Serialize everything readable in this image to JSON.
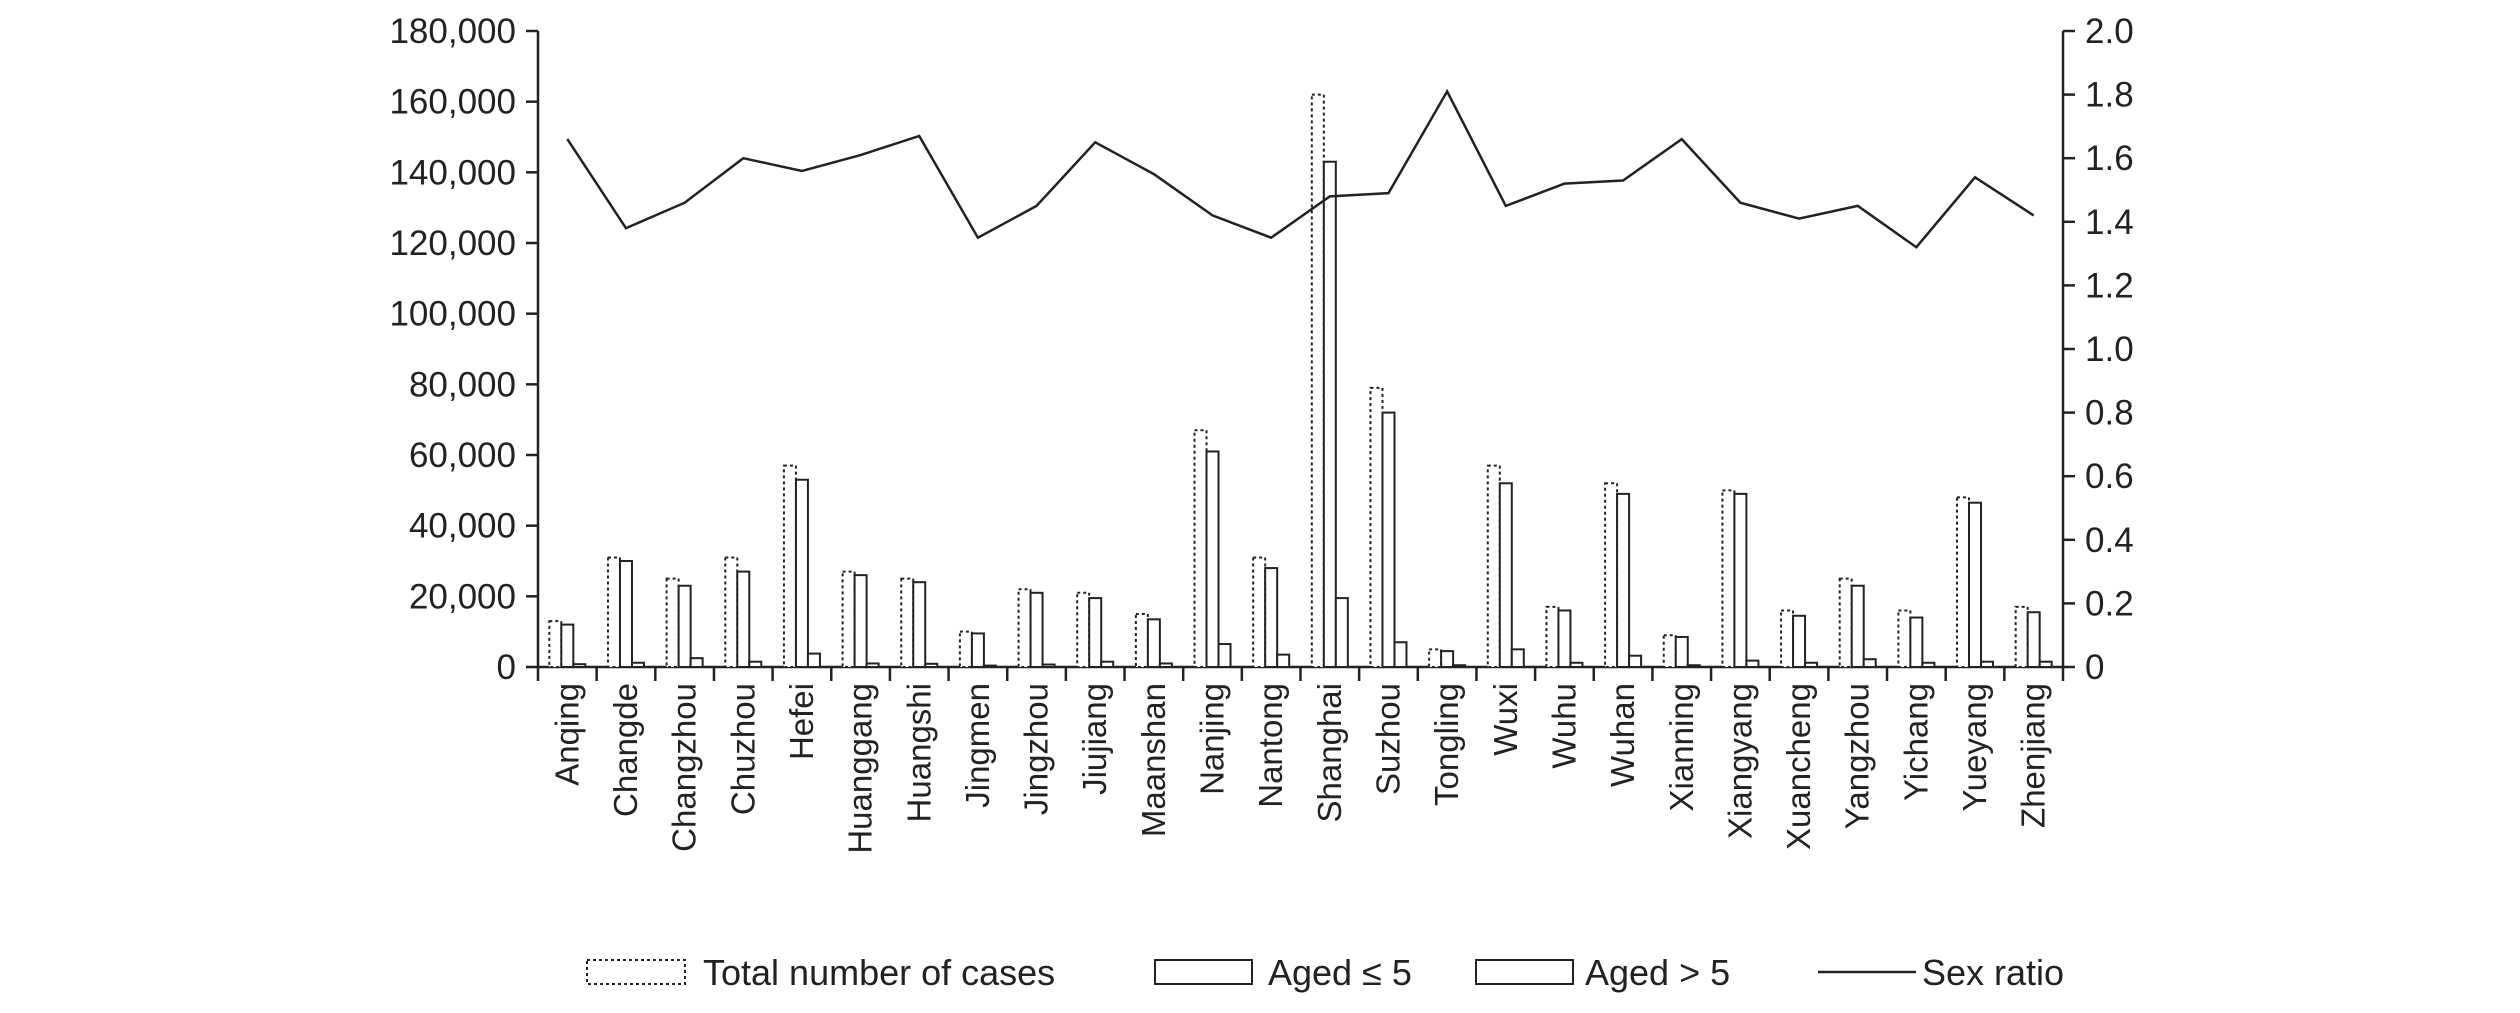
{
  "chart_data": {
    "type": "bar",
    "categories": [
      "Anqing",
      "Changde",
      "Changzhou",
      "Chuzhou",
      "Hefei",
      "Huanggang",
      "Huangshi",
      "Jingmen",
      "Jingzhou",
      "Jiujiang",
      "Maanshan",
      "Nanjing",
      "Nantong",
      "Shanghai",
      "Suzhou",
      "Tongling",
      "Wuxi",
      "Wuhu",
      "Wuhan",
      "Xianning",
      "Xiangyang",
      "Xuancheng",
      "Yangzhou",
      "Yichang",
      "Yueyang",
      "Zhenjiang"
    ],
    "series": [
      {
        "name": "Total number of cases",
        "type": "bar",
        "style": "dotted",
        "axis": "left",
        "values": [
          13000,
          31000,
          25000,
          31000,
          57000,
          27000,
          25000,
          10000,
          22000,
          21000,
          15000,
          67000,
          31000,
          162000,
          79000,
          5000,
          57000,
          17000,
          52000,
          9000,
          50000,
          16000,
          25000,
          16000,
          48000,
          17000
        ]
      },
      {
        "name": "Aged ≤ 5",
        "type": "bar",
        "style": "solid",
        "axis": "left",
        "values": [
          12000,
          30000,
          23000,
          27000,
          53000,
          26000,
          24000,
          9500,
          21000,
          19500,
          13500,
          61000,
          28000,
          143000,
          72000,
          4500,
          52000,
          16000,
          49000,
          8500,
          49000,
          14500,
          23000,
          14000,
          46500,
          15500
        ]
      },
      {
        "name": "Aged > 5",
        "type": "bar",
        "style": "solid",
        "axis": "left",
        "values": [
          800,
          1200,
          2500,
          1500,
          3800,
          1000,
          900,
          400,
          700,
          1500,
          1000,
          6500,
          3500,
          19500,
          7000,
          500,
          5000,
          1200,
          3200,
          500,
          1800,
          1200,
          2200,
          1200,
          1500,
          1500
        ]
      },
      {
        "name": "Sex ratio",
        "type": "line",
        "axis": "right",
        "values": [
          1.66,
          1.38,
          1.46,
          1.6,
          1.56,
          1.61,
          1.67,
          1.35,
          1.45,
          1.65,
          1.55,
          1.42,
          1.35,
          1.48,
          1.49,
          1.81,
          1.45,
          1.52,
          1.53,
          1.66,
          1.46,
          1.41,
          1.45,
          1.32,
          1.54,
          1.42
        ]
      }
    ],
    "y_left": {
      "min": 0,
      "max": 180000,
      "ticks": [
        "0",
        "20,000",
        "40,000",
        "60,000",
        "80,000",
        "100,000",
        "120,000",
        "140,000",
        "160,000",
        "180,000"
      ]
    },
    "y_right": {
      "min": 0,
      "max": 2.0,
      "ticks": [
        "0",
        "0.2",
        "0.4",
        "0.6",
        "0.8",
        "1.0",
        "1.2",
        "1.4",
        "1.6",
        "1.8",
        "2.0"
      ]
    },
    "legend": {
      "placement": "bottom",
      "items": [
        "Total number of cases",
        "Aged ≤ 5",
        "Aged > 5",
        "Sex ratio"
      ]
    },
    "grid": false,
    "colors": {
      "axis": "#222222",
      "bar_stroke": "#222222",
      "bar_fill": "#ffffff",
      "line": "#222222"
    }
  }
}
